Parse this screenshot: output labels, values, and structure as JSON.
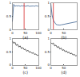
{
  "chart_data": [
    {
      "type": "line",
      "title": "(a)",
      "x": [
        0,
        5,
        10,
        15,
        20,
        25,
        30,
        35,
        40,
        45,
        50,
        55,
        60,
        65,
        70,
        75,
        80,
        85,
        90,
        95,
        100
      ],
      "series": [
        {
          "color": "#3a5f8f",
          "values": [
            0.3,
            0.95,
            0.88,
            0.9,
            0.89,
            0.9,
            0.88,
            0.9,
            0.89,
            0.9,
            0.88,
            0.89,
            0.9,
            0.88,
            0.89,
            0.9,
            0.89,
            0.88,
            0.9,
            0.89,
            0.88
          ]
        },
        {
          "color": "#d62728",
          "x": [
            45,
            45
          ],
          "values": [
            0,
            1
          ]
        }
      ],
      "xlim": [
        0,
        100
      ],
      "ylim": [
        0,
        1
      ],
      "xticks": [
        0,
        50,
        100
      ],
      "yticks": [
        0,
        0.5,
        1
      ],
      "grid": false
    },
    {
      "type": "line",
      "title": "(b)",
      "x": [
        0,
        5,
        10,
        15,
        20,
        25,
        30,
        35,
        40,
        45,
        50,
        55,
        60,
        65,
        70,
        75,
        80,
        85,
        90,
        95,
        100
      ],
      "series": [
        {
          "color": "#3a5f8f",
          "values": [
            1,
            0.55,
            0.35,
            0.25,
            0.2,
            0.18,
            0.17,
            0.17,
            0.18,
            0.19,
            0.2,
            0.21,
            0.22,
            0.23,
            0.24,
            0.25,
            0.26,
            0.27,
            0.28,
            0.29,
            0.3
          ]
        },
        {
          "color": "#d62728",
          "x": [
            10,
            10
          ],
          "values": [
            0,
            1
          ]
        }
      ],
      "xlim": [
        0,
        100
      ],
      "ylim": [
        0,
        1
      ],
      "xticks": [
        0,
        50,
        100
      ],
      "yticks": [
        0,
        0.5,
        1
      ],
      "grid": false
    },
    {
      "type": "line",
      "title": "(c)",
      "x": [
        0,
        5,
        10,
        15,
        20,
        25,
        30,
        35,
        40,
        45,
        50,
        55,
        60,
        65,
        70,
        75,
        80,
        85,
        90,
        95,
        100
      ],
      "series": [
        {
          "color": "#333333",
          "values": [
            0.9,
            0.82,
            0.86,
            0.74,
            0.78,
            0.68,
            0.72,
            0.62,
            0.66,
            0.58,
            0.6,
            0.52,
            0.56,
            0.48,
            0.5,
            0.44,
            0.47,
            0.4,
            0.42,
            0.36,
            0.38
          ]
        }
      ],
      "xlim": [
        0,
        100
      ],
      "ylim": [
        0,
        1
      ],
      "xticks": [
        0,
        50,
        100
      ],
      "yticks": [
        0,
        0.5,
        1
      ],
      "grid": false
    },
    {
      "type": "line",
      "title": "(d)",
      "x": [
        0,
        5,
        10,
        15,
        20,
        25,
        30,
        35,
        40,
        45,
        50,
        55,
        60,
        65,
        70,
        75,
        80,
        85,
        90,
        95,
        100
      ],
      "series": [
        {
          "color": "#333333",
          "values": [
            0.85,
            0.8,
            0.83,
            0.72,
            0.75,
            0.66,
            0.7,
            0.6,
            0.64,
            0.55,
            0.58,
            0.5,
            0.54,
            0.46,
            0.49,
            0.42,
            0.45,
            0.38,
            0.41,
            0.34,
            0.36
          ]
        }
      ],
      "xlim": [
        0,
        100
      ],
      "ylim": [
        0,
        1
      ],
      "xticks": [
        0,
        50,
        100
      ],
      "yticks": [
        0,
        0.5,
        1
      ],
      "grid": false
    }
  ]
}
